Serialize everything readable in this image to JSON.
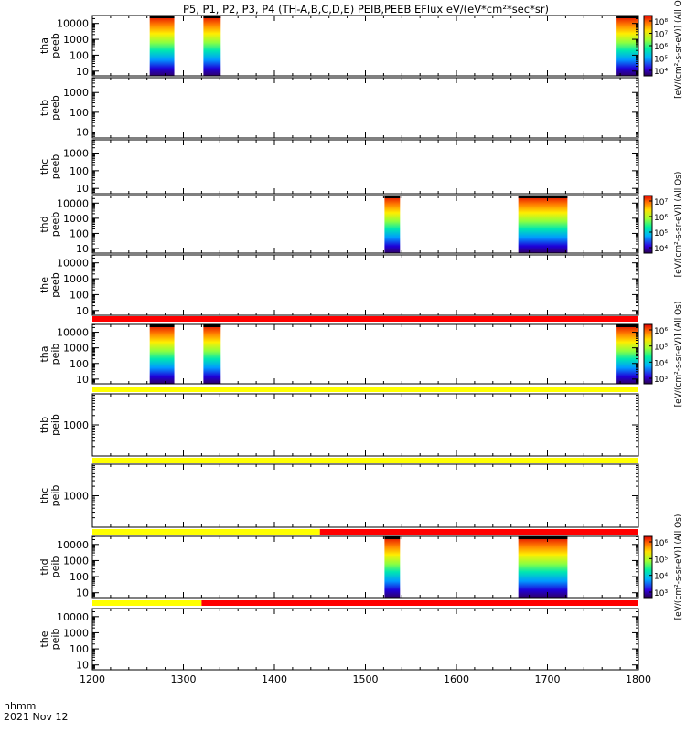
{
  "chart_data": {
    "type": "heatmap",
    "title": "P5, P1, P2, P3, P4 (TH-A,B,C,D,E) PEIB,PEEB EFlux eV/(eV*cm²*sec*sr)",
    "x_axis": {
      "range": [
        1200,
        1800
      ],
      "ticks": [
        "1200",
        "1300",
        "1400",
        "1500",
        "1600",
        "1700",
        "1800"
      ],
      "label": "hhmm",
      "date": "2021 Nov 12"
    },
    "panels": [
      {
        "id": "tha_peeb",
        "ylabel": [
          "tha",
          "peeb"
        ],
        "yticks": [
          "10",
          "100",
          "1000",
          "10000"
        ],
        "y_log_range": [
          0.7,
          4.5
        ],
        "status_bar": null,
        "data_intervals": [
          [
            1263,
            1290
          ],
          [
            1322,
            1341
          ],
          [
            1776,
            1800
          ]
        ],
        "colorbar": {
          "ticks": [
            "10⁸",
            "10⁷",
            "10⁶",
            "10⁵",
            "10⁴"
          ],
          "label": "[eV/(cm²-s-sr-eV)] (All Qs)"
        }
      },
      {
        "id": "thb_peeb",
        "ylabel": [
          "thb",
          "peeb"
        ],
        "yticks": [
          "10",
          "100",
          "1000"
        ],
        "y_log_range": [
          0.7,
          3.75
        ],
        "status_bar": null,
        "data_intervals": [],
        "colorbar": null
      },
      {
        "id": "thc_peeb",
        "ylabel": [
          "thc",
          "peeb"
        ],
        "yticks": [
          "10",
          "100",
          "1000"
        ],
        "y_log_range": [
          0.7,
          3.75
        ],
        "status_bar": null,
        "data_intervals": [],
        "colorbar": null
      },
      {
        "id": "thd_peeb",
        "ylabel": [
          "thd",
          "peeb"
        ],
        "yticks": [
          "10",
          "100",
          "1000",
          "10000"
        ],
        "y_log_range": [
          0.7,
          4.5
        ],
        "status_bar": null,
        "data_intervals": [
          [
            1521,
            1538
          ],
          [
            1668,
            1722
          ]
        ],
        "colorbar": {
          "ticks": [
            "10⁷",
            "10⁶",
            "10⁵",
            "10⁴"
          ],
          "label": "[eV/(cm²-s-sr-eV)] (All Qs)"
        }
      },
      {
        "id": "the_peeb",
        "ylabel": [
          "the",
          "peeb"
        ],
        "yticks": [
          "10",
          "100",
          "1000",
          "10000"
        ],
        "y_log_range": [
          0.7,
          4.5
        ],
        "status_bar": null,
        "data_intervals": [],
        "colorbar": null
      },
      {
        "id": "tha_peib",
        "ylabel": [
          "tha",
          "peib"
        ],
        "yticks": [
          "10",
          "100",
          "1000",
          "10000"
        ],
        "y_log_range": [
          0.7,
          4.5
        ],
        "status_bar": [
          {
            "from": 1200,
            "to": 1800,
            "color": "#ff0000"
          }
        ],
        "data_intervals": [
          [
            1263,
            1290
          ],
          [
            1322,
            1341
          ],
          [
            1776,
            1800
          ]
        ],
        "colorbar": {
          "ticks": [
            "10⁶",
            "10⁵",
            "10⁴",
            "10³"
          ],
          "label": "[eV/(cm²-s-sr-eV)] (All Qs)"
        }
      },
      {
        "id": "thb_peib",
        "ylabel": [
          "thb",
          "peib"
        ],
        "yticks": [
          "1000"
        ],
        "y_log_range": [
          2.0,
          4.0
        ],
        "status_bar": [
          {
            "from": 1200,
            "to": 1800,
            "color": "#ffff00"
          }
        ],
        "data_intervals": [],
        "colorbar": null
      },
      {
        "id": "thc_peib",
        "ylabel": [
          "thc",
          "peib"
        ],
        "yticks": [
          "1000"
        ],
        "y_log_range": [
          2.0,
          4.0
        ],
        "status_bar": [
          {
            "from": 1200,
            "to": 1800,
            "color": "#ffff00"
          }
        ],
        "data_intervals": [],
        "colorbar": null
      },
      {
        "id": "thd_peib",
        "ylabel": [
          "thd",
          "peib"
        ],
        "yticks": [
          "10",
          "100",
          "1000",
          "10000"
        ],
        "y_log_range": [
          0.7,
          4.5
        ],
        "status_bar": [
          {
            "from": 1200,
            "to": 1450,
            "color": "#ffff00"
          },
          {
            "from": 1450,
            "to": 1800,
            "color": "#ff0000"
          }
        ],
        "data_intervals": [
          [
            1521,
            1538
          ],
          [
            1668,
            1722
          ]
        ],
        "colorbar": {
          "ticks": [
            "10⁶",
            "10⁵",
            "10⁴",
            "10³"
          ],
          "label": "[eV/(cm²-s-sr-eV)] (All Qs)"
        }
      },
      {
        "id": "the_peib",
        "ylabel": [
          "the",
          "peib"
        ],
        "yticks": [
          "10",
          "100",
          "1000",
          "10000"
        ],
        "y_log_range": [
          0.7,
          4.5
        ],
        "status_bar": [
          {
            "from": 1200,
            "to": 1320,
            "color": "#ffff00"
          },
          {
            "from": 1320,
            "to": 1800,
            "color": "#ff0000"
          }
        ],
        "data_intervals": [],
        "colorbar": null
      }
    ]
  }
}
